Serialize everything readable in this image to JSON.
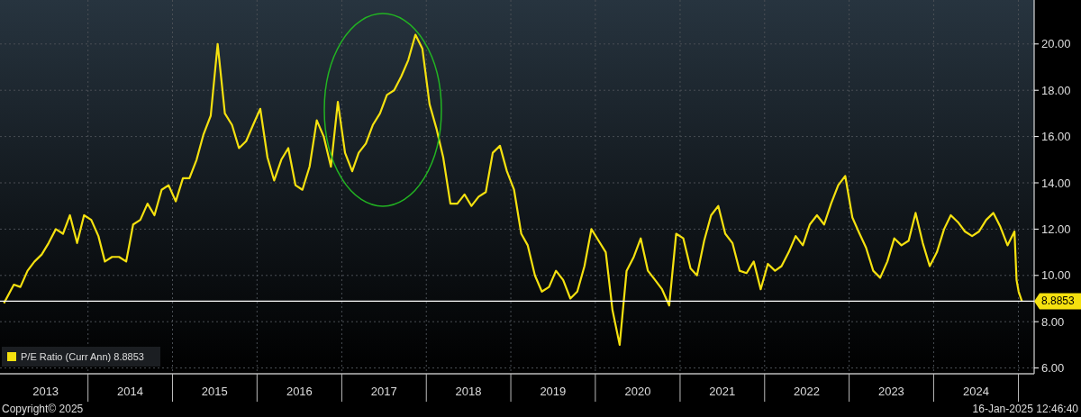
{
  "chart_data": {
    "type": "line",
    "x": [
      "2013-01-03",
      "2013-02",
      "2013-03",
      "2013-04",
      "2013-05",
      "2013-06",
      "2013-07",
      "2013-08",
      "2013-09",
      "2013-10",
      "2013-11",
      "2013-12",
      "2014-01",
      "2014-02",
      "2014-03",
      "2014-04",
      "2014-05",
      "2014-06",
      "2014-07",
      "2014-08",
      "2014-09",
      "2014-10",
      "2014-11",
      "2014-12",
      "2015-01",
      "2015-02",
      "2015-03",
      "2015-04",
      "2015-05",
      "2015-06",
      "2015-07",
      "2015-08",
      "2015-09",
      "2015-10",
      "2015-11",
      "2015-12",
      "2016-01",
      "2016-02",
      "2016-03",
      "2016-04",
      "2016-05",
      "2016-06",
      "2016-07",
      "2016-08",
      "2016-09",
      "2016-10",
      "2016-11",
      "2016-12",
      "2017-01",
      "2017-02",
      "2017-03",
      "2017-04",
      "2017-05",
      "2017-06",
      "2017-07",
      "2017-08",
      "2017-09",
      "2017-10",
      "2017-11",
      "2017-12",
      "2018-01",
      "2018-02",
      "2018-03",
      "2018-04",
      "2018-05",
      "2018-06",
      "2018-07",
      "2018-08",
      "2018-09",
      "2018-10",
      "2018-11",
      "2018-12",
      "2019-01",
      "2019-02",
      "2019-03",
      "2019-04",
      "2019-05",
      "2019-06",
      "2019-07",
      "2019-08",
      "2019-09",
      "2019-10",
      "2019-11",
      "2019-12",
      "2020-01",
      "2020-02",
      "2020-03",
      "2020-04",
      "2020-05",
      "2020-06",
      "2020-07",
      "2020-08",
      "2020-09",
      "2020-10",
      "2020-11",
      "2020-12",
      "2021-01",
      "2021-02",
      "2021-03",
      "2021-04",
      "2021-05",
      "2021-06",
      "2021-07",
      "2021-08",
      "2021-09",
      "2021-10",
      "2021-11",
      "2021-12",
      "2022-01",
      "2022-02",
      "2022-03",
      "2022-04",
      "2022-05",
      "2022-06",
      "2022-07",
      "2022-08",
      "2022-09",
      "2022-10",
      "2022-11",
      "2022-12",
      "2023-01",
      "2023-02",
      "2023-03",
      "2023-04",
      "2023-05",
      "2023-06",
      "2023-07",
      "2023-08",
      "2023-09",
      "2023-10",
      "2023-11",
      "2023-12",
      "2024-01",
      "2024-02",
      "2024-03",
      "2024-04",
      "2024-05",
      "2024-06",
      "2024-07",
      "2024-08",
      "2024-09",
      "2024-10",
      "2024-11",
      "2024-12",
      "2024-12-24",
      "2025-01-02",
      "2025-01-16"
    ],
    "series": [
      {
        "name": "P/E Ratio (Curr Ann) 8.8853",
        "color": "#f5e10f",
        "values": [
          8.8,
          9.6,
          9.5,
          10.2,
          10.6,
          10.9,
          11.4,
          12.0,
          11.8,
          12.6,
          11.4,
          12.6,
          12.4,
          11.7,
          10.6,
          10.8,
          10.8,
          10.6,
          12.2,
          12.4,
          13.1,
          12.6,
          13.7,
          13.9,
          13.2,
          14.2,
          14.2,
          15.0,
          16.1,
          16.9,
          20.0,
          17.0,
          16.5,
          15.5,
          15.8,
          16.5,
          17.2,
          15.1,
          14.1,
          15.0,
          15.5,
          13.9,
          13.7,
          14.7,
          16.7,
          16.0,
          14.7,
          17.5,
          15.3,
          14.5,
          15.3,
          15.7,
          16.5,
          17.0,
          17.8,
          18.0,
          18.6,
          19.3,
          20.4,
          19.8,
          17.4,
          16.3,
          15.1,
          13.1,
          13.1,
          13.5,
          13.0,
          13.4,
          13.6,
          15.3,
          15.6,
          14.5,
          13.7,
          11.8,
          11.3,
          10.0,
          9.3,
          9.5,
          10.2,
          9.8,
          9.0,
          9.3,
          10.4,
          12.0,
          11.5,
          11.0,
          8.5,
          7.0,
          10.2,
          10.8,
          11.6,
          10.2,
          9.8,
          9.4,
          8.7,
          11.8,
          11.6,
          10.3,
          10.0,
          11.5,
          12.6,
          13.0,
          11.8,
          11.4,
          10.2,
          10.1,
          10.6,
          9.4,
          10.5,
          10.2,
          10.4,
          11.0,
          11.7,
          11.3,
          12.2,
          12.6,
          12.2,
          13.1,
          13.9,
          14.3,
          12.5,
          11.8,
          11.2,
          10.2,
          9.9,
          10.6,
          11.6,
          11.3,
          11.5,
          12.7,
          11.4,
          10.4,
          11.0,
          12.0,
          12.6,
          12.3,
          11.9,
          11.7,
          11.9,
          12.4,
          12.7,
          12.1,
          11.3,
          11.9,
          9.8,
          9.3,
          8.8853
        ]
      }
    ],
    "xlim": [
      "2012-12-17",
      "2025-03-10"
    ],
    "xticks": [
      {
        "value": "2013-07-02",
        "label": "2013"
      },
      {
        "value": "2014-07-02",
        "label": "2014"
      },
      {
        "value": "2015-07-02",
        "label": "2015"
      },
      {
        "value": "2016-07-02",
        "label": "2016"
      },
      {
        "value": "2017-07-02",
        "label": "2017"
      },
      {
        "value": "2018-07-02",
        "label": "2018"
      },
      {
        "value": "2019-07-02",
        "label": "2019"
      },
      {
        "value": "2020-07-02",
        "label": "2020"
      },
      {
        "value": "2021-07-02",
        "label": "2021"
      },
      {
        "value": "2022-07-02",
        "label": "2022"
      },
      {
        "value": "2023-07-02",
        "label": "2023"
      },
      {
        "value": "2024-07-02",
        "label": "2024"
      },
      {
        "value": "2014-01-01",
        "label": null
      },
      {
        "value": "2015-01-01",
        "label": null
      },
      {
        "value": "2016-01-01",
        "label": null
      },
      {
        "value": "2017-01-01",
        "label": null
      },
      {
        "value": "2018-01-01",
        "label": null
      },
      {
        "value": "2019-01-01",
        "label": null
      },
      {
        "value": "2020-01-01",
        "label": null
      },
      {
        "value": "2021-01-01",
        "label": null
      },
      {
        "value": "2022-01-01",
        "label": null
      },
      {
        "value": "2023-01-01",
        "label": null
      },
      {
        "value": "2024-01-01",
        "label": null
      },
      {
        "value": "2025-01-01",
        "label": null
      }
    ],
    "ylim": [
      5.75,
      21.9
    ],
    "yticks": [
      {
        "value": 6,
        "label": "6.00"
      },
      {
        "value": 8,
        "label": "8.00"
      },
      {
        "value": 10,
        "label": "10.00"
      },
      {
        "value": 12,
        "label": "12.00"
      },
      {
        "value": 14,
        "label": "14.00"
      },
      {
        "value": 16,
        "label": "16.00"
      },
      {
        "value": 18,
        "label": "18.00"
      },
      {
        "value": 20,
        "label": "20.00"
      }
    ],
    "ref_lines": [
      {
        "axis": "y",
        "value": 8.8853,
        "label": "8.8853",
        "color": "#ffffff"
      }
    ],
    "grid": true,
    "legend": "bottom left",
    "annotations": [
      "Copyright© 2025",
      "16-Jan-2025 12:46:40"
    ]
  }
}
